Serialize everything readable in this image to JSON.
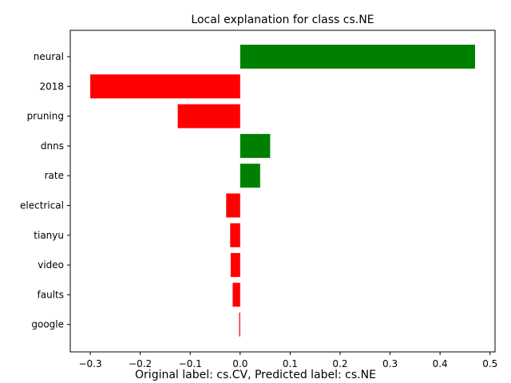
{
  "chart_data": {
    "type": "bar",
    "orientation": "horizontal",
    "title": "Local explanation for class cs.NE",
    "caption": "Original label: cs.CV, Predicted label: cs.NE",
    "categories": [
      "neural",
      "2018",
      "pruning",
      "dnns",
      "rate",
      "electrical",
      "tianyu",
      "video",
      "faults",
      "google"
    ],
    "values": [
      0.47,
      -0.3,
      -0.125,
      0.06,
      0.04,
      -0.028,
      -0.02,
      -0.019,
      -0.015,
      -0.002
    ],
    "xlim": [
      -0.34,
      0.51
    ],
    "xticks": [
      -0.3,
      -0.2,
      -0.1,
      0.0,
      0.1,
      0.2,
      0.3,
      0.4,
      0.5
    ],
    "xtick_labels": [
      "−0.3",
      "−0.2",
      "−0.1",
      "0.0",
      "0.1",
      "0.2",
      "0.3",
      "0.4",
      "0.5"
    ],
    "grid": false,
    "colors": {
      "positive": "#008000",
      "negative": "#ff0000"
    }
  }
}
